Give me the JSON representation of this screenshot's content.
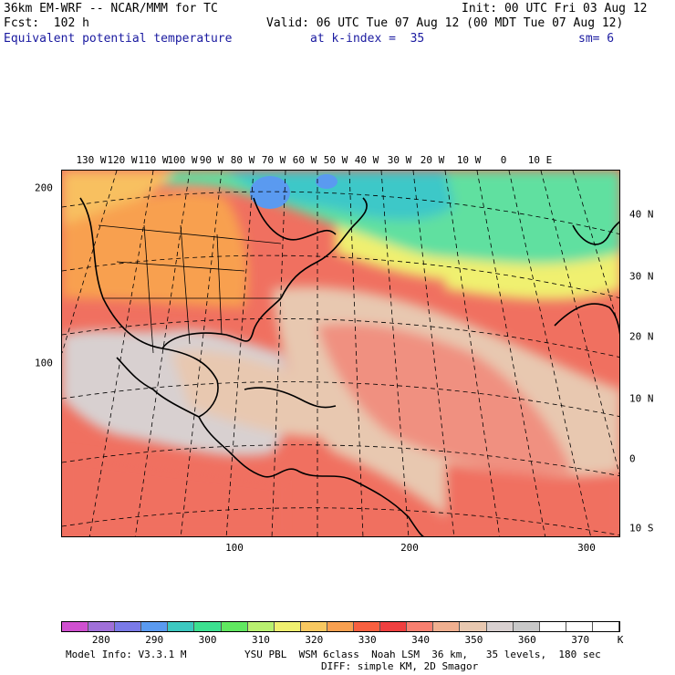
{
  "header": {
    "model_title": "36km EM-WRF -- NCAR/MMM for TC",
    "init": "Init: 00 UTC Fri 03 Aug 12",
    "forecast": "Fcst:  102 h",
    "valid": "Valid: 06 UTC Tue 07 Aug 12 (00 MDT Tue 07 Aug 12)",
    "field_name": "Equivalent potential temperature",
    "level": "at k-index =  35",
    "smoothing": "sm= 6"
  },
  "axes": {
    "top_lon_labels": [
      "130 W",
      "120 W",
      "110 W",
      "100 W",
      "90 W",
      "80 W",
      "70 W",
      "60 W",
      "50 W",
      "40 W",
      "30 W",
      "20 W",
      "10 W",
      "0",
      "10 E"
    ],
    "right_lat_labels": [
      "40 N",
      "30 N",
      "20 N",
      "10 N",
      "0",
      "10 S"
    ],
    "left_y_ticks": [
      "200",
      "100"
    ],
    "bottom_x_ticks": [
      "100",
      "200",
      "300"
    ]
  },
  "colorbar": {
    "labels": [
      "280",
      "290",
      "300",
      "310",
      "320",
      "330",
      "340",
      "350",
      "360",
      "370"
    ],
    "unit": "K",
    "colors": [
      "#d050d0",
      "#a070d8",
      "#7a7ae8",
      "#5a9af0",
      "#3cc8c0",
      "#3ce090",
      "#60e860",
      "#b8f070",
      "#f0f070",
      "#f8c860",
      "#f8a050",
      "#f86040",
      "#f04040",
      "#f88070",
      "#f0b090",
      "#e8c8b0",
      "#d8d0d0",
      "#c8c8c8",
      "#ffffff",
      "#ffffff",
      "#ffffff"
    ]
  },
  "footer": {
    "model_info": "Model Info: V3.3.1 M",
    "physics": "YSU PBL  WSM 6class  Noah LSM  36 km,   35 levels,  180 sec",
    "diffusion": "DIFF: simple KM, 2D Smagor"
  }
}
